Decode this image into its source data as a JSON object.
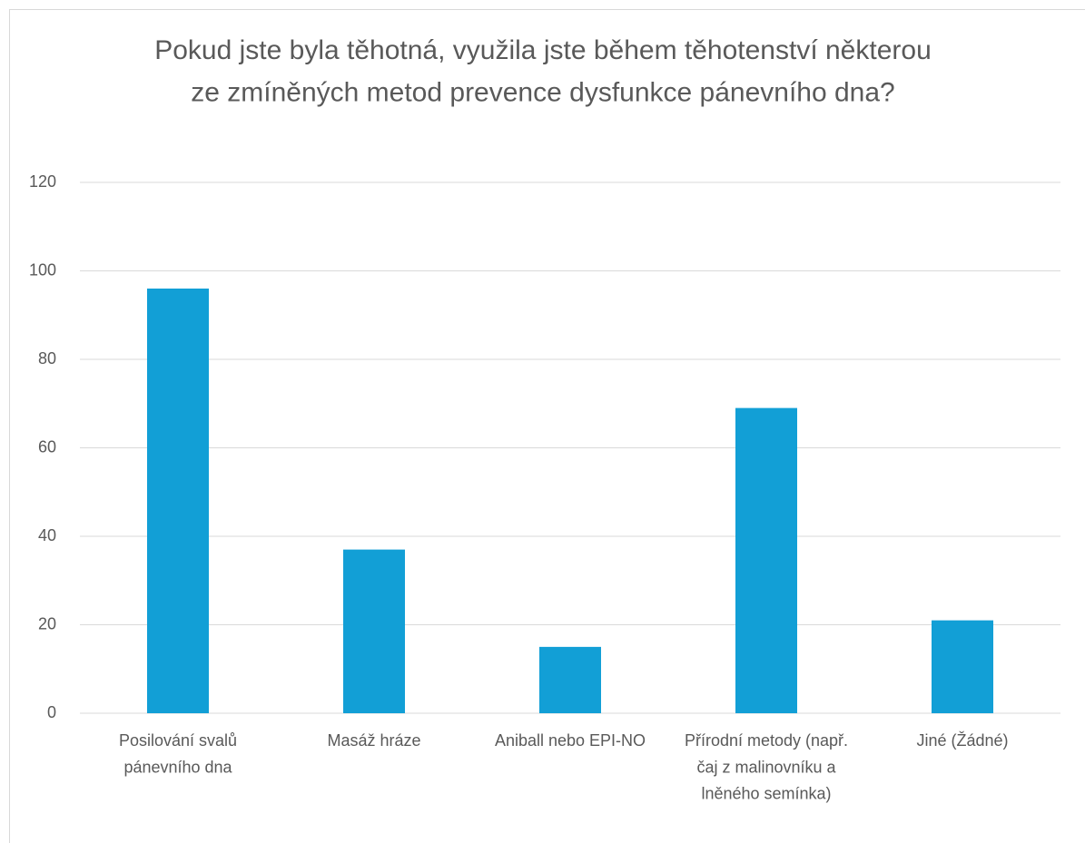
{
  "chart_data": {
    "type": "bar",
    "title": "Pokud jste byla těhotná, využila jste během těhotenství některou ze zmíněných metod prevence dysfunkce pánevního dna?",
    "categories": [
      "Posilování svalů pánevního dna",
      "Masáž hráze",
      "Aniball nebo EPI-NO",
      "Přírodní metody (např. čaj z malinovníku a lněného semínka)",
      "Jiné (Žádné)"
    ],
    "values": [
      96,
      37,
      15,
      69,
      21
    ],
    "color": "#129fd6",
    "ylim": [
      0,
      120
    ],
    "yticks": [
      0,
      20,
      40,
      60,
      80,
      100,
      120
    ],
    "grid": true
  }
}
